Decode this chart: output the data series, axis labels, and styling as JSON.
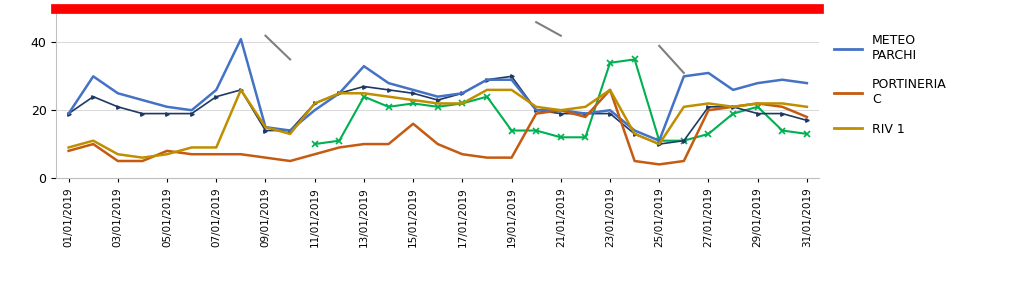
{
  "dates": [
    "01/01/2019",
    "02/01/2019",
    "03/01/2019",
    "04/01/2019",
    "05/01/2019",
    "06/01/2019",
    "07/01/2019",
    "08/01/2019",
    "09/01/2019",
    "10/01/2019",
    "11/01/2019",
    "12/01/2019",
    "13/01/2019",
    "14/01/2019",
    "15/01/2019",
    "16/01/2019",
    "17/01/2019",
    "18/01/2019",
    "19/01/2019",
    "20/01/2019",
    "21/01/2019",
    "22/01/2019",
    "23/01/2019",
    "24/01/2019",
    "25/01/2019",
    "26/01/2019",
    "27/01/2019",
    "28/01/2019",
    "29/01/2019",
    "30/01/2019",
    "31/01/2019"
  ],
  "meteo_parchi": [
    19,
    30,
    25,
    23,
    21,
    20,
    26,
    41,
    15,
    14,
    20,
    25,
    33,
    28,
    26,
    24,
    25,
    29,
    29,
    20,
    20,
    19,
    20,
    14,
    11,
    30,
    31,
    26,
    28,
    29,
    28
  ],
  "portineria_c": [
    8,
    10,
    5,
    5,
    8,
    7,
    7,
    7,
    6,
    5,
    7,
    9,
    10,
    10,
    16,
    10,
    7,
    6,
    6,
    19,
    20,
    18,
    26,
    5,
    4,
    5,
    20,
    21,
    22,
    21,
    18
  ],
  "riv1": [
    9,
    11,
    7,
    6,
    7,
    9,
    9,
    26,
    15,
    13,
    22,
    25,
    25,
    24,
    23,
    22,
    22,
    26,
    26,
    21,
    20,
    21,
    26,
    13,
    10,
    21,
    22,
    21,
    22,
    22,
    21
  ],
  "series4_dark_blue": [
    19,
    24,
    21,
    19,
    19,
    19,
    24,
    26,
    14,
    14,
    22,
    25,
    27,
    26,
    25,
    23,
    25,
    29,
    30,
    20,
    19,
    19,
    19,
    13,
    10,
    11,
    21,
    21,
    19,
    19,
    17
  ],
  "series5_green": [
    null,
    null,
    null,
    null,
    null,
    null,
    null,
    null,
    null,
    null,
    10,
    11,
    24,
    21,
    22,
    21,
    22,
    24,
    14,
    14,
    12,
    12,
    34,
    35,
    11,
    11,
    13,
    19,
    21,
    14,
    13
  ],
  "series6_gray": [
    null,
    null,
    null,
    null,
    null,
    null,
    null,
    null,
    42,
    35,
    null,
    null,
    null,
    null,
    null,
    null,
    null,
    null,
    null,
    46,
    42,
    null,
    null,
    null,
    39,
    31,
    null,
    null,
    null,
    null,
    null
  ],
  "threshold_value": 50,
  "colors": {
    "meteo_parchi": "#4472C4",
    "portineria_c": "#C55A11",
    "riv1": "#BF8F00",
    "dark_blue": "#1F3864",
    "green": "#00B050",
    "gray": "#7F7F7F",
    "red_threshold": "#FF0000"
  },
  "x_tick_labels": [
    "01/01/2019",
    "03/01/2019",
    "05/01/2019",
    "07/01/2019",
    "09/01/2019",
    "11/01/2019",
    "13/01/2019",
    "15/01/2019",
    "17/01/2019",
    "19/01/2019",
    "21/01/2019",
    "23/01/2019",
    "25/01/2019",
    "27/01/2019",
    "29/01/2019",
    "31/01/2019"
  ],
  "tick_positions": [
    0,
    2,
    4,
    6,
    8,
    10,
    12,
    14,
    16,
    18,
    20,
    22,
    24,
    26,
    28,
    30
  ],
  "ylim": [
    0,
    50
  ],
  "yticks": [
    0,
    20,
    40
  ],
  "figsize": [
    10.24,
    2.87
  ],
  "dpi": 100
}
